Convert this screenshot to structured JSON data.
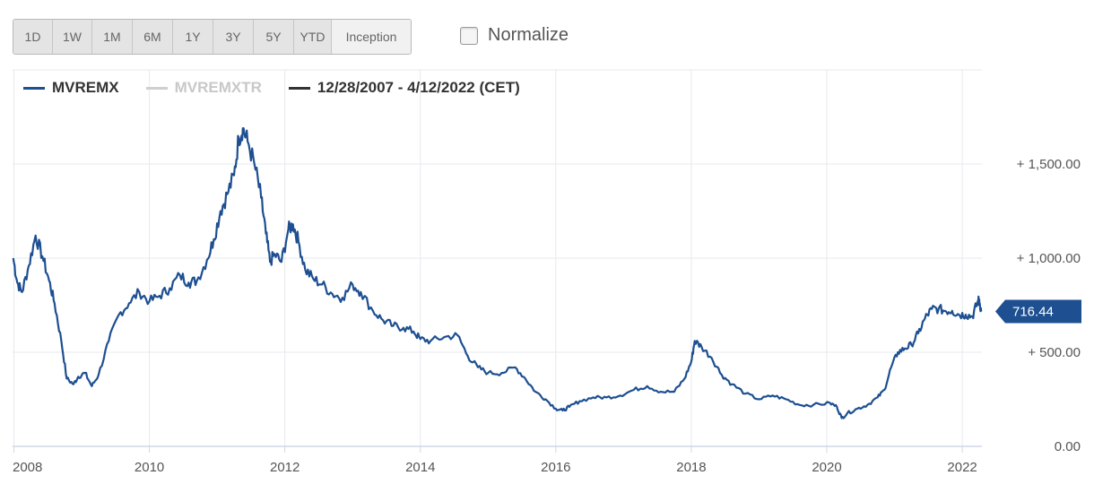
{
  "toolbar": {
    "ranges": [
      "1D",
      "1W",
      "1M",
      "6M",
      "1Y",
      "3Y",
      "5Y",
      "YTD",
      "Inception"
    ],
    "active_range": "Inception",
    "normalize_label": "Normalize",
    "normalize_checked": false
  },
  "legend": {
    "items": [
      {
        "label": "MVREMX",
        "color": "#1d4f91",
        "text_color": "#333333"
      },
      {
        "label": "MVREMXTR",
        "color": "#cfcfcf",
        "text_color": "#c8c8c8"
      },
      {
        "label": "12/28/2007 - 4/12/2022 (CET)",
        "color": "#333333",
        "text_color": "#333333"
      }
    ]
  },
  "chart_data": {
    "type": "line",
    "series": [
      {
        "name": "MVREMX",
        "color": "#1d4f91",
        "points": [
          [
            2007.99,
            1000
          ],
          [
            2008.05,
            870
          ],
          [
            2008.12,
            820
          ],
          [
            2008.22,
            960
          ],
          [
            2008.32,
            1120
          ],
          [
            2008.42,
            1010
          ],
          [
            2008.52,
            880
          ],
          [
            2008.6,
            760
          ],
          [
            2008.7,
            560
          ],
          [
            2008.78,
            360
          ],
          [
            2008.88,
            330
          ],
          [
            2008.95,
            370
          ],
          [
            2009.05,
            390
          ],
          [
            2009.15,
            320
          ],
          [
            2009.25,
            380
          ],
          [
            2009.4,
            560
          ],
          [
            2009.55,
            700
          ],
          [
            2009.7,
            760
          ],
          [
            2009.85,
            820
          ],
          [
            2010.0,
            770
          ],
          [
            2010.15,
            800
          ],
          [
            2010.3,
            840
          ],
          [
            2010.45,
            910
          ],
          [
            2010.58,
            870
          ],
          [
            2010.7,
            880
          ],
          [
            2010.85,
            990
          ],
          [
            2010.95,
            1100
          ],
          [
            2011.05,
            1250
          ],
          [
            2011.15,
            1340
          ],
          [
            2011.25,
            1440
          ],
          [
            2011.32,
            1640
          ],
          [
            2011.38,
            1690
          ],
          [
            2011.45,
            1620
          ],
          [
            2011.55,
            1500
          ],
          [
            2011.65,
            1320
          ],
          [
            2011.72,
            1130
          ],
          [
            2011.78,
            980
          ],
          [
            2011.85,
            1020
          ],
          [
            2011.95,
            980
          ],
          [
            2012.05,
            1150
          ],
          [
            2012.12,
            1180
          ],
          [
            2012.2,
            1090
          ],
          [
            2012.3,
            940
          ],
          [
            2012.42,
            890
          ],
          [
            2012.55,
            860
          ],
          [
            2012.7,
            810
          ],
          [
            2012.85,
            790
          ],
          [
            2013.0,
            860
          ],
          [
            2013.12,
            820
          ],
          [
            2013.3,
            720
          ],
          [
            2013.45,
            670
          ],
          [
            2013.6,
            640
          ],
          [
            2013.75,
            630
          ],
          [
            2013.9,
            610
          ],
          [
            2014.0,
            570
          ],
          [
            2014.15,
            560
          ],
          [
            2014.35,
            580
          ],
          [
            2014.55,
            590
          ],
          [
            2014.7,
            480
          ],
          [
            2014.85,
            420
          ],
          [
            2015.0,
            390
          ],
          [
            2015.2,
            390
          ],
          [
            2015.4,
            420
          ],
          [
            2015.55,
            360
          ],
          [
            2015.7,
            290
          ],
          [
            2015.85,
            250
          ],
          [
            2016.0,
            200
          ],
          [
            2016.1,
            190
          ],
          [
            2016.2,
            210
          ],
          [
            2016.35,
            240
          ],
          [
            2016.55,
            260
          ],
          [
            2016.75,
            260
          ],
          [
            2016.95,
            270
          ],
          [
            2017.15,
            300
          ],
          [
            2017.35,
            320
          ],
          [
            2017.55,
            290
          ],
          [
            2017.75,
            290
          ],
          [
            2017.9,
            360
          ],
          [
            2018.0,
            450
          ],
          [
            2018.05,
            560
          ],
          [
            2018.15,
            530
          ],
          [
            2018.3,
            470
          ],
          [
            2018.45,
            380
          ],
          [
            2018.6,
            330
          ],
          [
            2018.8,
            280
          ],
          [
            2019.0,
            250
          ],
          [
            2019.2,
            270
          ],
          [
            2019.4,
            250
          ],
          [
            2019.6,
            220
          ],
          [
            2019.8,
            220
          ],
          [
            2020.05,
            230
          ],
          [
            2020.15,
            210
          ],
          [
            2020.22,
            150
          ],
          [
            2020.3,
            175
          ],
          [
            2020.45,
            200
          ],
          [
            2020.6,
            220
          ],
          [
            2020.75,
            260
          ],
          [
            2020.85,
            300
          ],
          [
            2020.95,
            420
          ],
          [
            2021.05,
            500
          ],
          [
            2021.15,
            520
          ],
          [
            2021.25,
            540
          ],
          [
            2021.35,
            600
          ],
          [
            2021.45,
            680
          ],
          [
            2021.55,
            730
          ],
          [
            2021.65,
            730
          ],
          [
            2021.75,
            720
          ],
          [
            2021.85,
            720
          ],
          [
            2021.95,
            700
          ],
          [
            2022.05,
            700
          ],
          [
            2022.15,
            690
          ],
          [
            2022.22,
            760
          ],
          [
            2022.25,
            780
          ],
          [
            2022.28,
            716.44
          ]
        ]
      }
    ],
    "last_value": "716.44",
    "last_value_number": 716.44,
    "y_ticks": [
      {
        "value": 0,
        "label": "0.00"
      },
      {
        "value": 500,
        "label": "+ 500.00"
      },
      {
        "value": 1000,
        "label": "+ 1,000.00"
      },
      {
        "value": 1500,
        "label": "+ 1,500.00"
      }
    ],
    "x_ticks": [
      {
        "value": 2008,
        "label": "2008"
      },
      {
        "value": 2010,
        "label": "2010"
      },
      {
        "value": 2012,
        "label": "2012"
      },
      {
        "value": 2014,
        "label": "2014"
      },
      {
        "value": 2016,
        "label": "2016"
      },
      {
        "value": 2018,
        "label": "2018"
      },
      {
        "value": 2020,
        "label": "2020"
      },
      {
        "value": 2022,
        "label": "2022"
      }
    ],
    "ylim": [
      0,
      1700
    ],
    "xlim": [
      2007.98,
      2022.29
    ],
    "grid": true,
    "legend_position": "top-left",
    "title": "",
    "xlabel": "",
    "ylabel": ""
  }
}
